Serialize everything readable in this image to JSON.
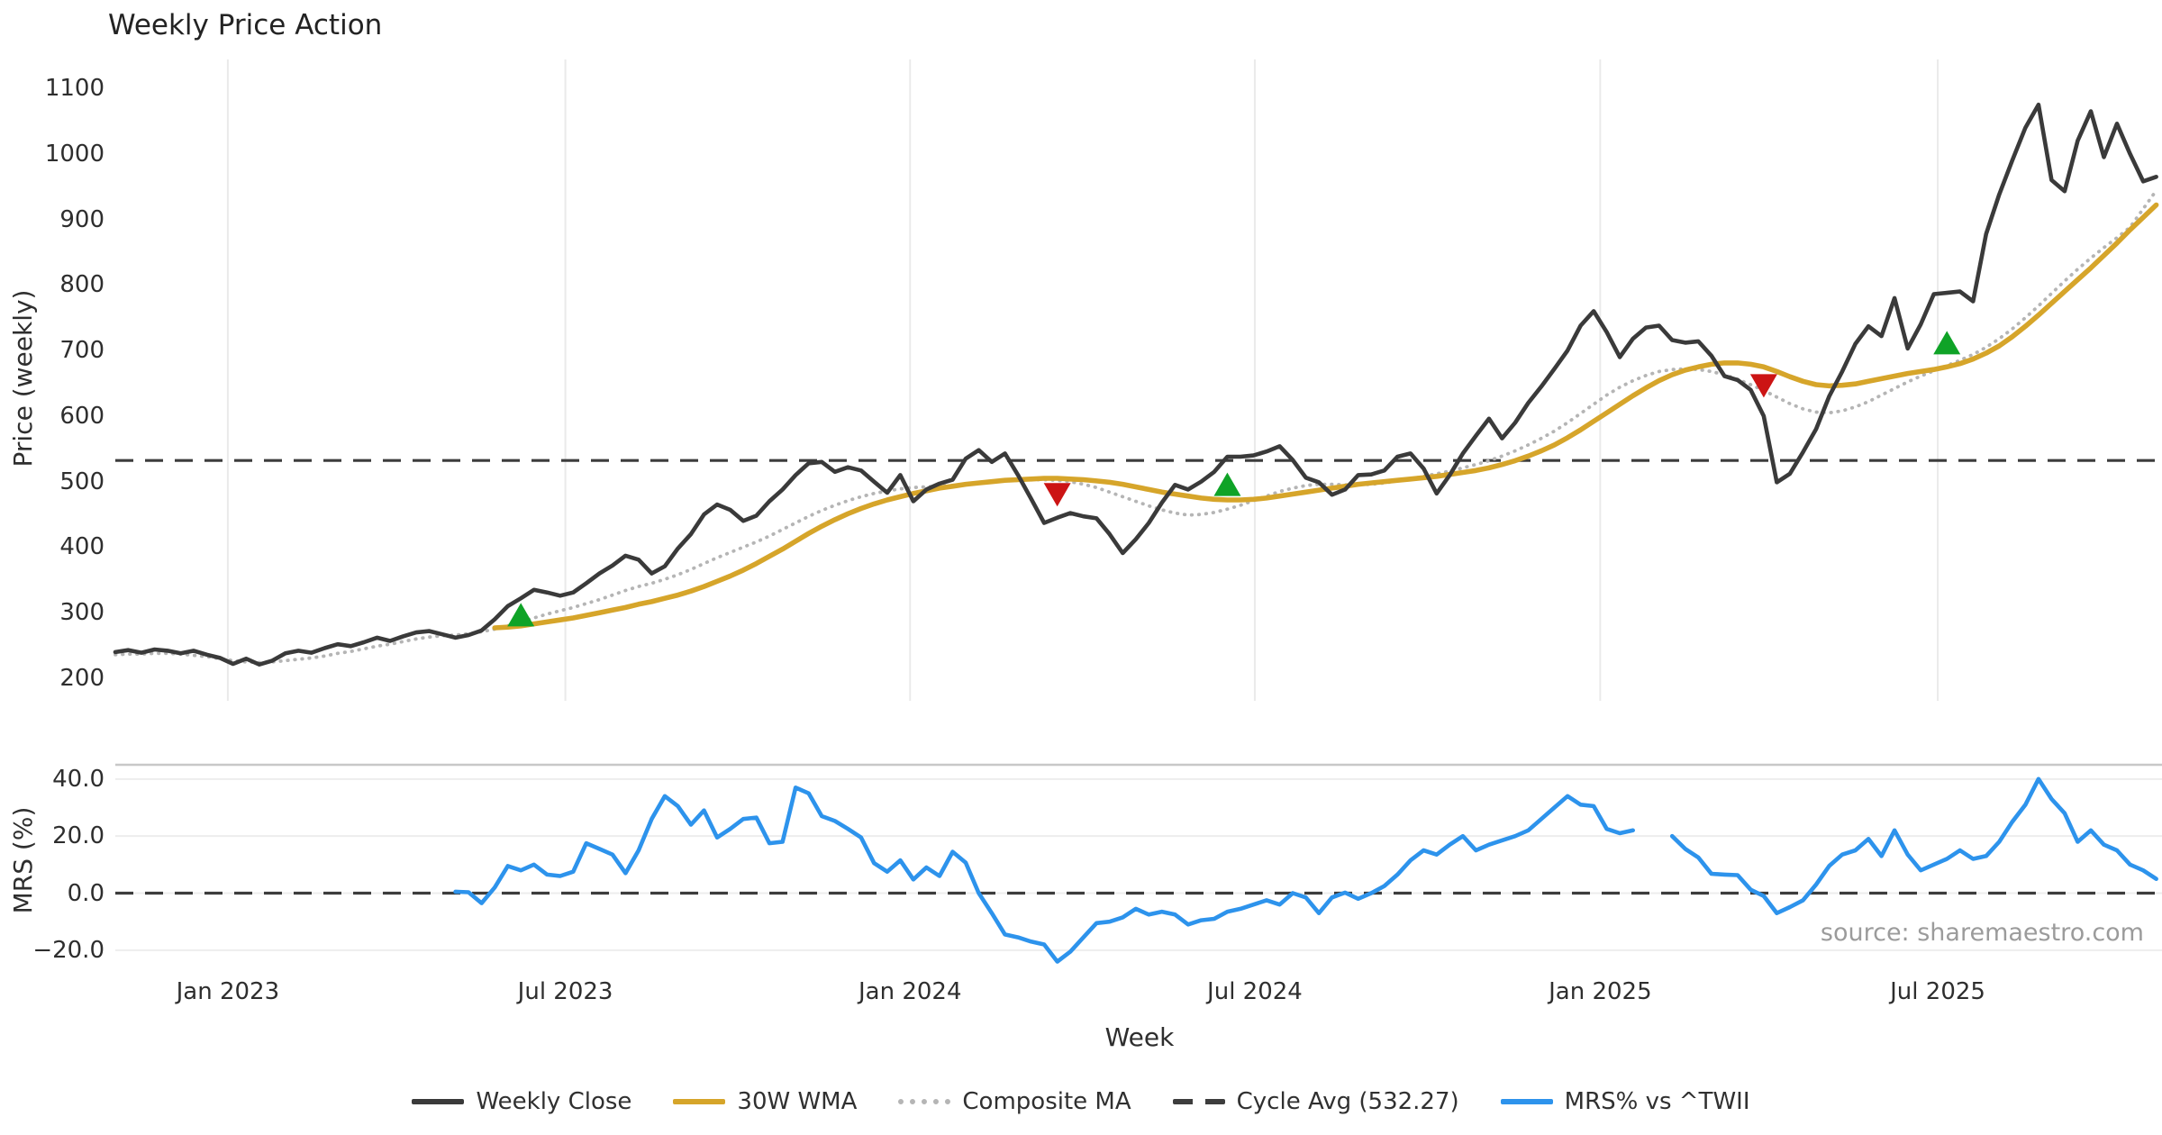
{
  "title": "Weekly Price Action",
  "xlabel": "Week",
  "source": "source: sharemaestro.com",
  "price_panel": {
    "ylabel": "Price (weekly)",
    "yticks": [
      1100,
      1000,
      900,
      800,
      700,
      600,
      500,
      400,
      300,
      200
    ]
  },
  "mrs_panel": {
    "ylabel": "MRS (%)",
    "yticks": [
      "40.0",
      "20.0",
      "0.0",
      "−20.0"
    ]
  },
  "x_ticks": [
    {
      "label": "Jan 2023",
      "week": 8.6
    },
    {
      "label": "Jul 2023",
      "week": 34.4
    },
    {
      "label": "Jan 2024",
      "week": 60.75
    },
    {
      "label": "Jul 2024",
      "week": 87.1
    },
    {
      "label": "Jan 2025",
      "week": 113.5
    },
    {
      "label": "Jul 2025",
      "week": 139.3
    }
  ],
  "legend": [
    {
      "label": "Weekly Close",
      "swatch": "solid",
      "color": "#3a3a3a"
    },
    {
      "label": "30W WMA",
      "swatch": "solid",
      "color": "#d6a52a"
    },
    {
      "label": "Composite MA",
      "swatch": "dotted",
      "color": "#b5b5b5"
    },
    {
      "label": "Cycle Avg (532.27)",
      "swatch": "dashed",
      "color": "#3d3d3d"
    },
    {
      "label": "MRS% vs ^TWII",
      "swatch": "solid",
      "color": "#2d93ec"
    }
  ],
  "colors": {
    "weekly_close": "#3a3a3a",
    "wma_30w": "#d6a52a",
    "composite_ma": "#b5b5b5",
    "cycle_avg": "#3d3d3d",
    "mrs": "#2d93ec",
    "buy_marker": "#0fa327",
    "sell_marker": "#cc1414",
    "grid_v": "#eaeaea",
    "grid_h": "#ededed",
    "panel_border": "#c8c8c8"
  },
  "chart_data": {
    "type": "line",
    "x_unit": "week_index",
    "start": "2022-10-31",
    "interval": "weekly",
    "price_ylim": [
      150,
      1150
    ],
    "mrs_ylim": [
      -27,
      45
    ],
    "cycle_avg": 532.27,
    "series": [
      {
        "name": "Weekly Close",
        "panel": "price",
        "style": "solid",
        "values": [
          240,
          243,
          239,
          244,
          242,
          238,
          242,
          236,
          231,
          222,
          230,
          221,
          227,
          238,
          242,
          239,
          246,
          252,
          249,
          255,
          262,
          257,
          264,
          270,
          272,
          267,
          262,
          266,
          273,
          290,
          310,
          322,
          335,
          331,
          326,
          331,
          345,
          360,
          372,
          387,
          381,
          360,
          371,
          398,
          420,
          450,
          465,
          457,
          440,
          448,
          470,
          488,
          510,
          528,
          530,
          515,
          522,
          517,
          500,
          483,
          510,
          470,
          488,
          497,
          503,
          535,
          548,
          530,
          543,
          510,
          474,
          437,
          445,
          452,
          447,
          444,
          420,
          391,
          412,
          437,
          468,
          495,
          488,
          500,
          515,
          538,
          538,
          540,
          546,
          554,
          533,
          506,
          499,
          480,
          488,
          510,
          511,
          517,
          538,
          543,
          520,
          482,
          510,
          543,
          570,
          596,
          566,
          590,
          620,
          645,
          672,
          700,
          738,
          760,
          728,
          690,
          718,
          735,
          738,
          716,
          712,
          714,
          692,
          661,
          655,
          640,
          600,
          499,
          512,
          545,
          580,
          630,
          668,
          710,
          737,
          722,
          780,
          703,
          740,
          786,
          788,
          790,
          775,
          878,
          938,
          990,
          1040,
          1075,
          960,
          943,
          1020,
          1065,
          995,
          1046,
          1000,
          958,
          965
        ]
      },
      {
        "name": "30W WMA",
        "panel": "price",
        "style": "solid",
        "values": [
          null,
          null,
          null,
          null,
          null,
          null,
          null,
          null,
          null,
          null,
          null,
          null,
          null,
          null,
          null,
          null,
          null,
          null,
          null,
          null,
          null,
          null,
          null,
          null,
          null,
          null,
          null,
          null,
          null,
          277,
          278,
          280,
          283,
          286,
          289,
          292,
          296,
          300,
          304,
          308,
          313,
          317,
          322,
          327,
          333,
          340,
          348,
          356,
          365,
          375,
          386,
          397,
          409,
          421,
          432,
          442,
          451,
          459,
          466,
          472,
          477,
          482,
          486,
          490,
          493,
          496,
          498,
          500,
          502,
          503,
          504,
          505,
          505,
          504,
          503,
          501,
          499,
          496,
          492,
          488,
          484,
          481,
          478,
          475,
          473,
          472,
          472,
          473,
          475,
          478,
          481,
          484,
          487,
          490,
          493,
          496,
          498,
          500,
          502,
          504,
          506,
          508,
          511,
          514,
          517,
          521,
          526,
          532,
          539,
          547,
          556,
          567,
          579,
          592,
          605,
          618,
          631,
          643,
          654,
          663,
          670,
          675,
          679,
          681,
          681,
          679,
          675,
          668,
          660,
          653,
          648,
          646,
          647,
          649,
          653,
          657,
          661,
          665,
          668,
          671,
          675,
          680,
          687,
          696,
          707,
          721,
          737,
          754,
          772,
          790,
          808,
          826,
          845,
          864,
          884,
          903,
          922
        ]
      },
      {
        "name": "Composite MA",
        "panel": "price",
        "style": "dotted",
        "values": [
          236,
          237,
          237,
          238,
          238,
          237,
          235,
          233,
          230,
          227,
          225,
          224,
          225,
          227,
          229,
          231,
          234,
          238,
          241,
          245,
          249,
          252,
          256,
          260,
          263,
          265,
          266,
          268,
          271,
          275,
          280,
          286,
          292,
          298,
          303,
          308,
          314,
          320,
          327,
          334,
          340,
          345,
          351,
          358,
          366,
          375,
          384,
          392,
          400,
          408,
          417,
          427,
          437,
          447,
          456,
          464,
          471,
          477,
          482,
          486,
          489,
          491,
          492,
          493,
          494,
          496,
          498,
          500,
          501,
          502,
          503,
          503,
          502,
          500,
          496,
          491,
          484,
          477,
          470,
          463,
          457,
          452,
          449,
          450,
          453,
          458,
          464,
          471,
          478,
          485,
          490,
          494,
          496,
          496,
          495,
          495,
          496,
          498,
          501,
          504,
          508,
          512,
          516,
          521,
          526,
          532,
          539,
          547,
          556,
          566,
          577,
          590,
          604,
          618,
          632,
          644,
          654,
          662,
          668,
          671,
          672,
          671,
          668,
          663,
          656,
          648,
          639,
          629,
          619,
          611,
          606,
          605,
          608,
          614,
          622,
          632,
          642,
          652,
          661,
          669,
          677,
          685,
          694,
          705,
          718,
          733,
          750,
          768,
          787,
          806,
          824,
          841,
          857,
          872,
          888,
          916,
          944
        ]
      },
      {
        "name": "MRS% vs ^TWII",
        "panel": "mrs",
        "style": "solid",
        "values": [
          null,
          null,
          null,
          null,
          null,
          null,
          null,
          null,
          null,
          null,
          null,
          null,
          null,
          null,
          null,
          null,
          null,
          null,
          null,
          null,
          null,
          null,
          null,
          null,
          null,
          null,
          0.5,
          0.3,
          -3.5,
          2,
          9.5,
          8,
          10,
          6.5,
          6,
          7.5,
          17.5,
          15.5,
          13.5,
          7,
          15,
          26,
          34,
          30.5,
          24,
          29,
          19.5,
          22.5,
          26,
          26.5,
          17.5,
          18,
          37,
          35,
          27,
          25.3,
          22.5,
          19.5,
          10.5,
          7.5,
          11.5,
          4.8,
          9,
          6,
          14.5,
          10.7,
          0,
          -7,
          -14.5,
          -15.5,
          -17,
          -18,
          -24,
          -20.5,
          -15.5,
          -10.5,
          -10,
          -8.5,
          -5.5,
          -7.5,
          -6.5,
          -7.5,
          -11,
          -9.5,
          -9,
          -6.5,
          -5.5,
          -4,
          -2.5,
          -4,
          0,
          -1.5,
          -7,
          -1.5,
          0.2,
          -2,
          0,
          2.5,
          6.5,
          11.5,
          15,
          13.5,
          17,
          20,
          15,
          17,
          18.5,
          20,
          22,
          26,
          30,
          34,
          31,
          30.5,
          22.5,
          21,
          22,
          null,
          null,
          20,
          15.5,
          12.5,
          6.8,
          6.5,
          6.3,
          1.2,
          -1,
          -7,
          -4.9,
          -2.5,
          3,
          9.5,
          13.5,
          15,
          19,
          13,
          22,
          13.5,
          8,
          10,
          12,
          15,
          12,
          13,
          18,
          25,
          31,
          40,
          33,
          28,
          18,
          22,
          17,
          15,
          10,
          8,
          5
        ]
      }
    ],
    "signals": {
      "buy": [
        {
          "week": 31,
          "price": 297
        },
        {
          "week": 85,
          "price": 496
        },
        {
          "week": 140,
          "price": 712
        }
      ],
      "sell": [
        {
          "week": 72,
          "price": 480
        },
        {
          "week": 126,
          "price": 646
        }
      ]
    }
  }
}
